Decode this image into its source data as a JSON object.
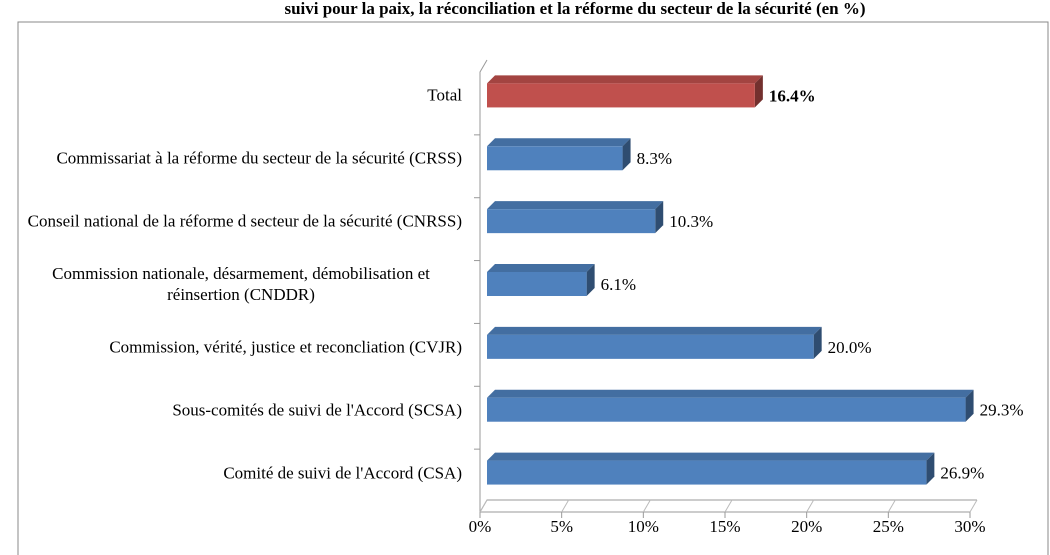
{
  "chart_data": {
    "type": "bar",
    "orientation": "horizontal",
    "title": "suivi pour la paix, la réconciliation et la réforme du secteur de la sécurité (en %)",
    "categories": [
      "Total",
      "Commissariat à la réforme du secteur de la sécurité (CRSS)",
      "Conseil national de la réforme d secteur de la sécurité (CNRSS)",
      "Commission nationale, désarmement, démobilisation et réinsertion (CNDDR)",
      "Commission, vérité, justice et reconcliation (CVJR)",
      "Sous-comités de suivi de l'Accord (SCSA)",
      "Comité de suivi de l'Accord (CSA)"
    ],
    "values": [
      16.4,
      8.3,
      10.3,
      6.1,
      20.0,
      29.3,
      26.9
    ],
    "value_labels": [
      "16.4%",
      "8.3%",
      "10.3%",
      "6.1%",
      "20.0%",
      "29.3%",
      "26.9%"
    ],
    "colors": [
      "#c0504d",
      "#4f81bd",
      "#4f81bd",
      "#4f81bd",
      "#4f81bd",
      "#4f81bd",
      "#4f81bd"
    ],
    "xlim": [
      0,
      30
    ],
    "xticks": [
      {
        "value": 0,
        "label": "0%"
      },
      {
        "value": 5,
        "label": "5%"
      },
      {
        "value": 10,
        "label": "10%"
      },
      {
        "value": 15,
        "label": "15%"
      },
      {
        "value": 20,
        "label": "20%"
      },
      {
        "value": 25,
        "label": "25%"
      },
      {
        "value": 30,
        "label": "30%"
      }
    ]
  }
}
